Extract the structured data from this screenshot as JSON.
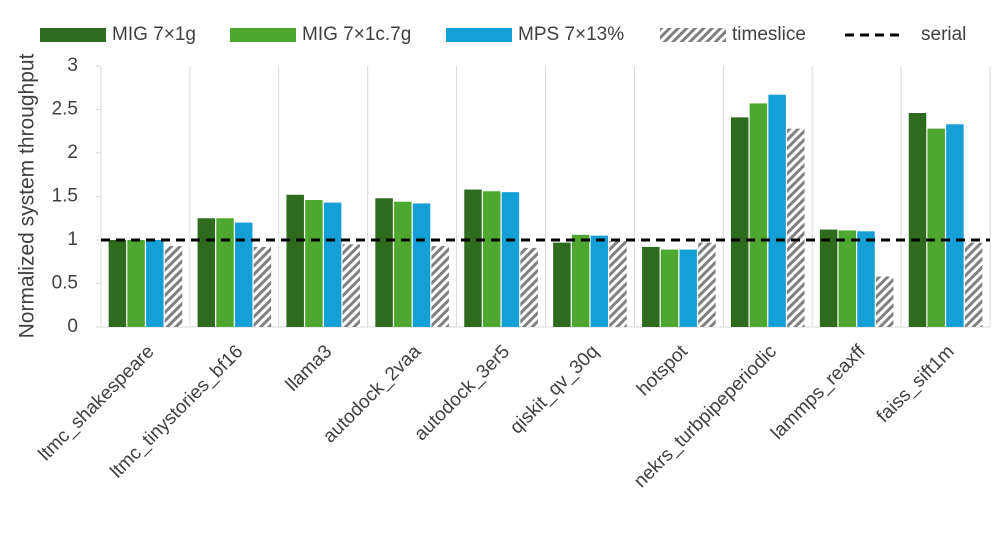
{
  "chart_data": {
    "type": "bar",
    "y_label": "Normalized system throughput",
    "categories": [
      "ltmc_shakespeare",
      "ltmc_tinystories_bf16",
      "llama3",
      "autodock_2vaa",
      "autodock_3er5",
      "qiskit_qv_30q",
      "hotspot",
      "nekrs_turbpipeperiodic",
      "lammps_reaxff",
      "faiss_sift1m"
    ],
    "series": [
      {
        "name": "MIG 7×1g",
        "color": "#2e6b1f",
        "values": [
          1.0,
          1.25,
          1.52,
          1.48,
          1.58,
          0.97,
          0.92,
          2.41,
          1.12,
          2.46
        ]
      },
      {
        "name": "MIG 7×1c.7g",
        "color": "#4ea72e",
        "values": [
          1.0,
          1.25,
          1.46,
          1.44,
          1.56,
          1.06,
          0.89,
          2.57,
          1.11,
          2.28
        ]
      },
      {
        "name": "MPS 7×13%",
        "color": "#159fd7",
        "values": [
          1.0,
          1.2,
          1.43,
          1.42,
          1.55,
          1.05,
          0.89,
          2.67,
          1.1,
          2.33
        ]
      },
      {
        "name": "timeslice",
        "color": "#808080",
        "pattern": "hatch",
        "values": [
          0.93,
          0.92,
          0.95,
          0.93,
          0.91,
          0.99,
          0.97,
          2.28,
          0.58,
          0.97
        ]
      }
    ],
    "reference_line": {
      "name": "serial",
      "value": 1,
      "color": "#000000"
    },
    "ylim": [
      0,
      3
    ],
    "yticks": [
      0,
      0.5,
      1,
      1.5,
      2,
      2.5,
      3
    ],
    "grid": "category-separators",
    "legend": "top"
  }
}
